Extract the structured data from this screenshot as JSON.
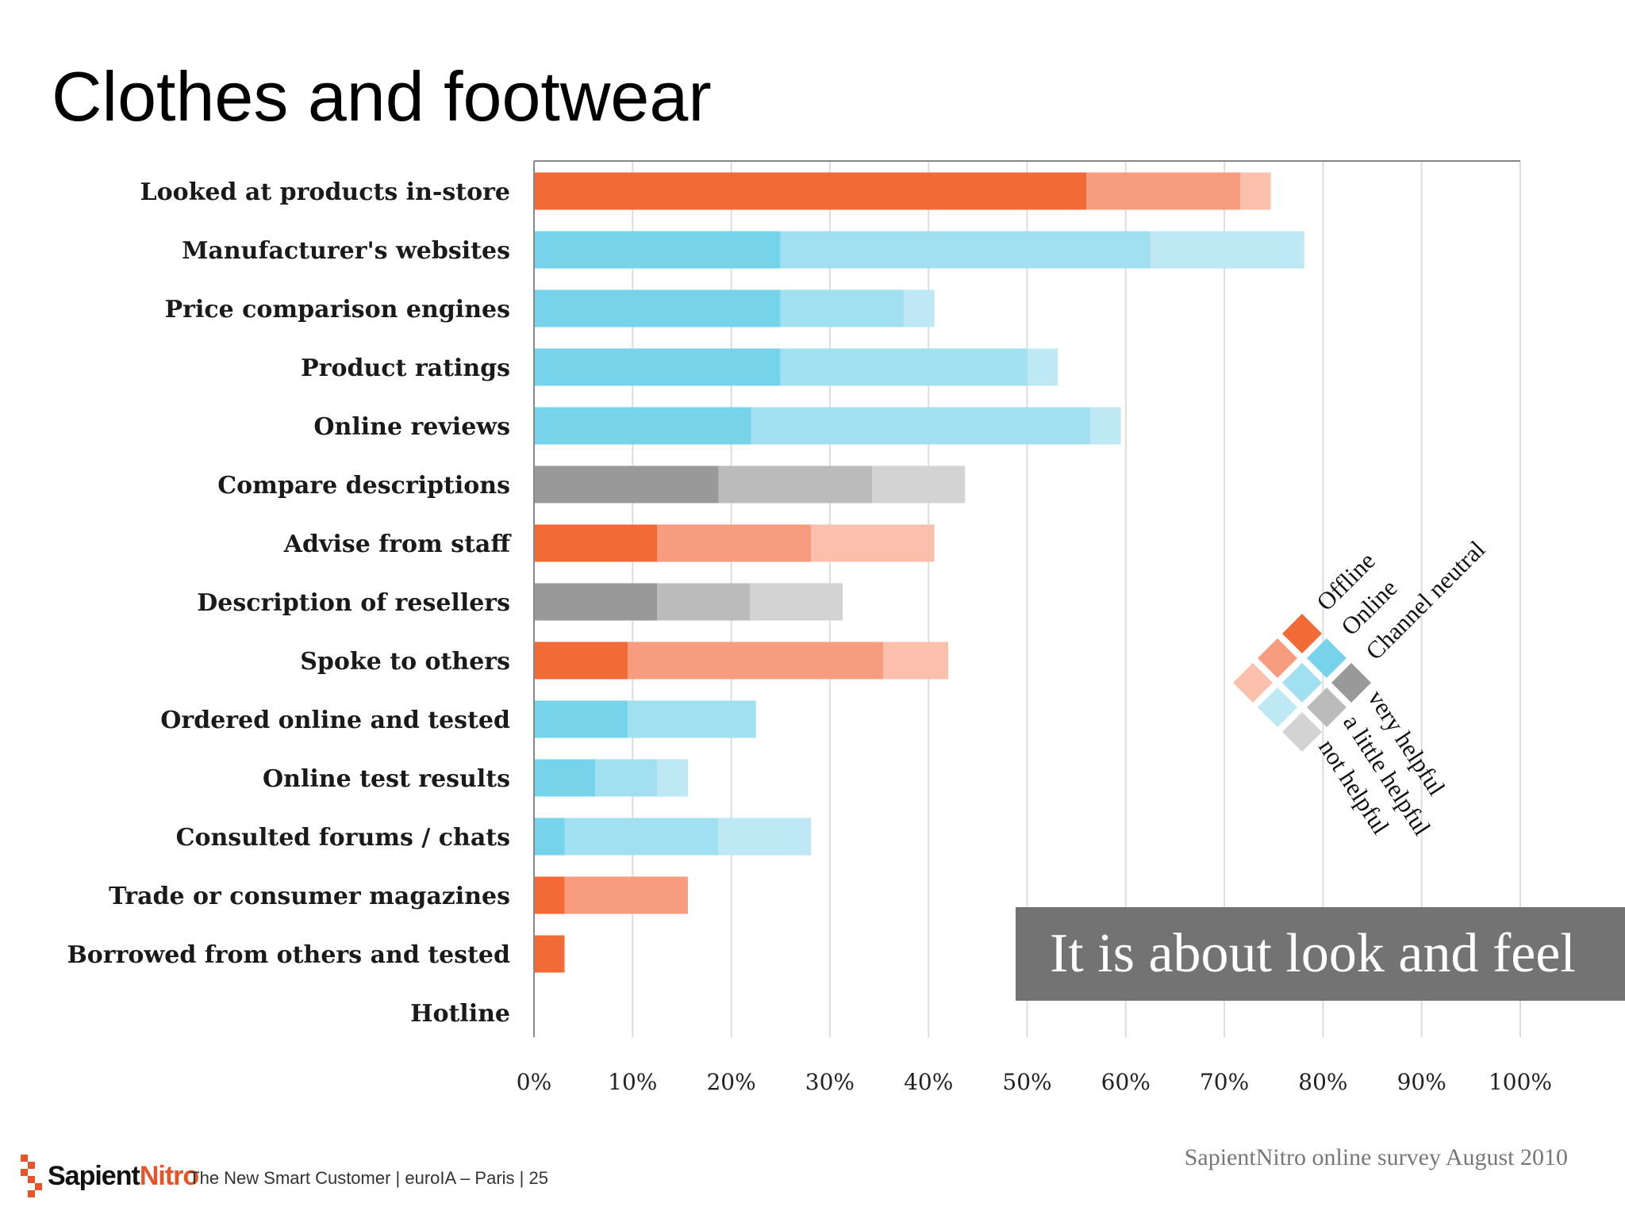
{
  "title": "Clothes and footwear",
  "colors": {
    "Offline": [
      "#f26a35",
      "#f79c7e",
      "#fac0ac"
    ],
    "Online": [
      "#76d3ea",
      "#a0e0f0",
      "#bde8f4"
    ],
    "Channel neutral": [
      "#999999",
      "#bbbbbb",
      "#d3d3d3"
    ],
    "grid": "#dddddd",
    "axis": "#888888"
  },
  "chart_data": {
    "type": "bar",
    "orientation": "horizontal",
    "stacked": true,
    "categories": [
      "Looked at products in-store",
      "Manufacturer's websites",
      "Price comparison engines",
      "Product ratings",
      "Online reviews",
      "Compare descriptions",
      "Advise from staff",
      "Description of resellers",
      "Spoke to others",
      "Ordered online and tested",
      "Online test results",
      "Consulted forums / chats",
      "Trade or consumer magazines",
      "Borrowed from others and tested",
      "Hotline"
    ],
    "channel": [
      "Offline",
      "Online",
      "Online",
      "Online",
      "Online",
      "Channel neutral",
      "Offline",
      "Channel neutral",
      "Offline",
      "Online",
      "Online",
      "Online",
      "Offline",
      "Offline",
      "Online"
    ],
    "series": [
      {
        "name": "very helpful",
        "values": [
          56,
          25,
          25,
          25,
          22,
          18.7,
          12.5,
          12.5,
          9.5,
          9.5,
          6.2,
          3.1,
          3.1,
          3.1,
          0
        ]
      },
      {
        "name": "a little helpful",
        "values": [
          15.6,
          37.5,
          12.5,
          25,
          34.4,
          15.6,
          15.6,
          9.4,
          25.9,
          13,
          6.3,
          15.6,
          12.5,
          0,
          0
        ]
      },
      {
        "name": "not helpful",
        "values": [
          3.1,
          15.6,
          3.1,
          3.1,
          3.1,
          9.4,
          12.5,
          9.4,
          6.6,
          0,
          3.1,
          9.4,
          0,
          0,
          0
        ]
      }
    ],
    "xlim": [
      0,
      100
    ],
    "x_ticks": [
      "0%",
      "10%",
      "20%",
      "30%",
      "40%",
      "50%",
      "60%",
      "70%",
      "80%",
      "90%",
      "100%"
    ],
    "grid": true,
    "legend": {
      "position": "right",
      "channels": [
        "Offline",
        "Online",
        "Channel neutral"
      ],
      "levels": [
        "very helpful",
        "a little helpful",
        "not helpful"
      ]
    }
  },
  "callout": "It is about look and feel",
  "source": "SapientNitro online survey August 2010",
  "footer": {
    "logo_part1": "Sapient",
    "logo_part2": "Nitro",
    "text": "The New Smart Customer  |  euroIA – Paris  |  25"
  }
}
